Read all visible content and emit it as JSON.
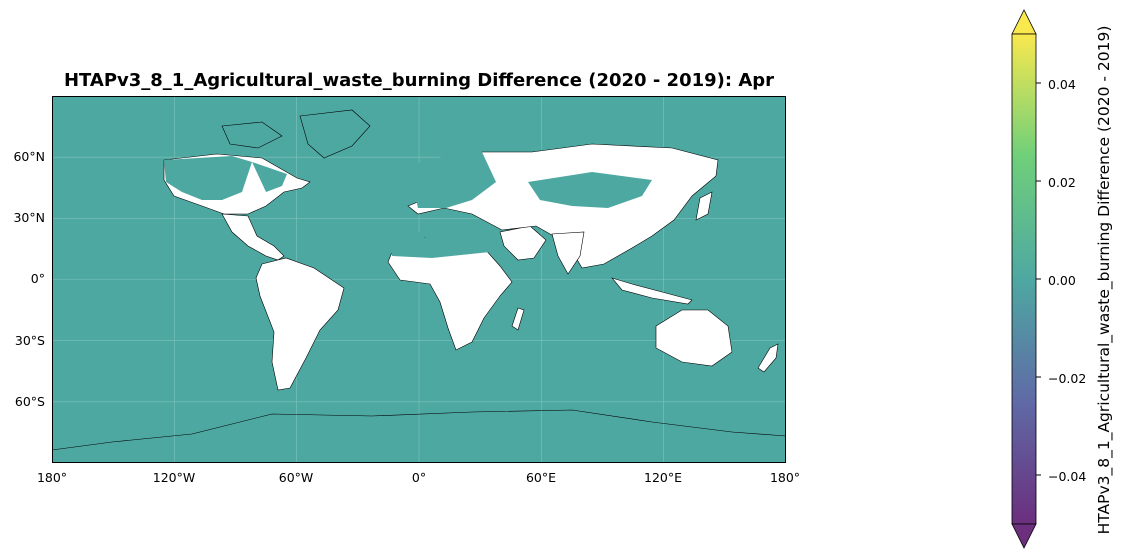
{
  "title": "HTAPv3_8_1_Agricultural_waste_burning Difference (2020 - 2019): Apr",
  "projection": "plate-carree",
  "extent": {
    "lon": [
      -180,
      180
    ],
    "lat": [
      -90,
      90
    ]
  },
  "gridlines": true,
  "ocean_color": "#4ea8a2",
  "land_nodata_color": "#ffffff",
  "coastline_color": "#000000",
  "lat_ticks": [
    "60°N",
    "30°N",
    "0°",
    "30°S",
    "60°S"
  ],
  "lat_values": [
    60,
    30,
    0,
    -30,
    -60
  ],
  "lon_ticks": [
    "180°",
    "120°W",
    "60°W",
    "0°",
    "60°E",
    "120°E",
    "180°"
  ],
  "lon_values": [
    -180,
    -120,
    -60,
    0,
    60,
    120,
    180
  ],
  "colorbar": {
    "label": "HTAPv3_8_1_Agricultural_waste_burning Difference (2020 - 2019)",
    "colormap": "viridis",
    "range": [
      -0.05,
      0.05
    ],
    "extend": "both",
    "orientation": "vertical",
    "ticks": [
      "0.04",
      "0.02",
      "0.00",
      "−0.02",
      "−0.04"
    ],
    "tick_values": [
      0.04,
      0.02,
      0.0,
      -0.02,
      -0.04
    ]
  }
}
